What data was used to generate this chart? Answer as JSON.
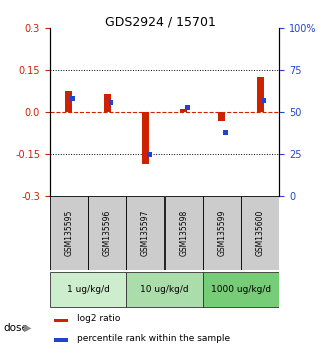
{
  "title": "GDS2924 / 15701",
  "samples": [
    "GSM135595",
    "GSM135596",
    "GSM135597",
    "GSM135598",
    "GSM135599",
    "GSM135600"
  ],
  "log2_ratio": [
    0.075,
    0.065,
    -0.185,
    0.012,
    -0.03,
    0.125
  ],
  "percentile_rank": [
    58,
    56,
    25,
    53,
    38,
    57
  ],
  "dose_groups": [
    {
      "label": "1 ug/kg/d",
      "samples": [
        0,
        1
      ],
      "color": "#cceecc"
    },
    {
      "label": "10 ug/kg/d",
      "samples": [
        2,
        3
      ],
      "color": "#aaddaa"
    },
    {
      "label": "1000 ug/kg/d",
      "samples": [
        4,
        5
      ],
      "color": "#77cc77"
    }
  ],
  "ylim_left": [
    -0.3,
    0.3
  ],
  "ylim_right": [
    0,
    100
  ],
  "yticks_left": [
    -0.3,
    -0.15,
    0.0,
    0.15,
    0.3
  ],
  "yticks_right": [
    0,
    25,
    50,
    75,
    100
  ],
  "hlines": [
    0.15,
    -0.15
  ],
  "red_color": "#cc2200",
  "blue_color": "#2244cc",
  "sample_box_color": "#cccccc",
  "dose_label": "dose",
  "legend_red": "log2 ratio",
  "legend_blue": "percentile rank within the sample",
  "bg_color": "#ffffff"
}
